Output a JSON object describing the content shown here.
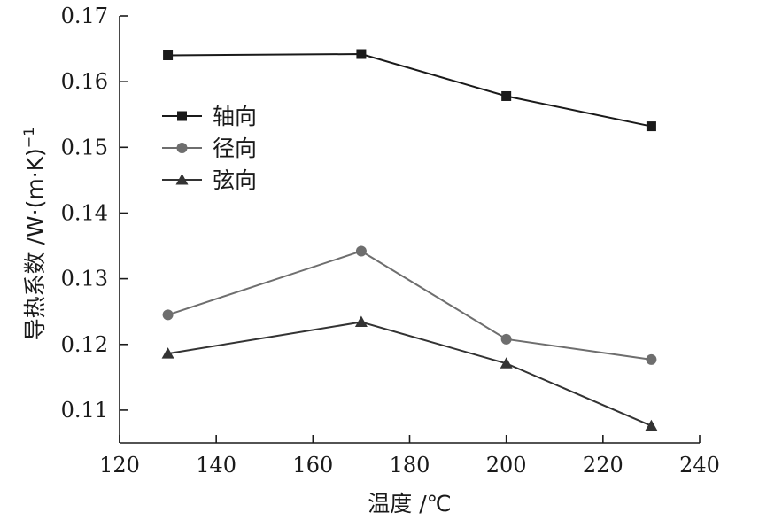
{
  "chart_data": {
    "type": "line",
    "title": "",
    "xlabel": "温度 /℃",
    "ylabel": "导热系数 /W·(m·K)",
    "ylabel_superscript": "−1",
    "xlim": [
      120,
      240
    ],
    "ylim": [
      0.105,
      0.17
    ],
    "x_ticks": [
      "120",
      "140",
      "160",
      "180",
      "200",
      "220",
      "240"
    ],
    "y_ticks": [
      "0.11",
      "0.12",
      "0.13",
      "0.14",
      "0.15",
      "0.16",
      "0.17"
    ],
    "grid": false,
    "legend_position": "upper-left",
    "x": [
      130,
      170,
      200,
      230
    ],
    "series": [
      {
        "name": "轴向",
        "marker": "square",
        "color": "#1a1a1a",
        "values": [
          0.164,
          0.1642,
          0.1578,
          0.1532
        ]
      },
      {
        "name": "径向",
        "marker": "circle",
        "color": "#6e6e6e",
        "values": [
          0.1245,
          0.1342,
          0.1208,
          0.1177
        ]
      },
      {
        "name": "弦向",
        "marker": "triangle",
        "color": "#333333",
        "values": [
          0.1186,
          0.1234,
          0.1171,
          0.1076
        ]
      }
    ]
  }
}
